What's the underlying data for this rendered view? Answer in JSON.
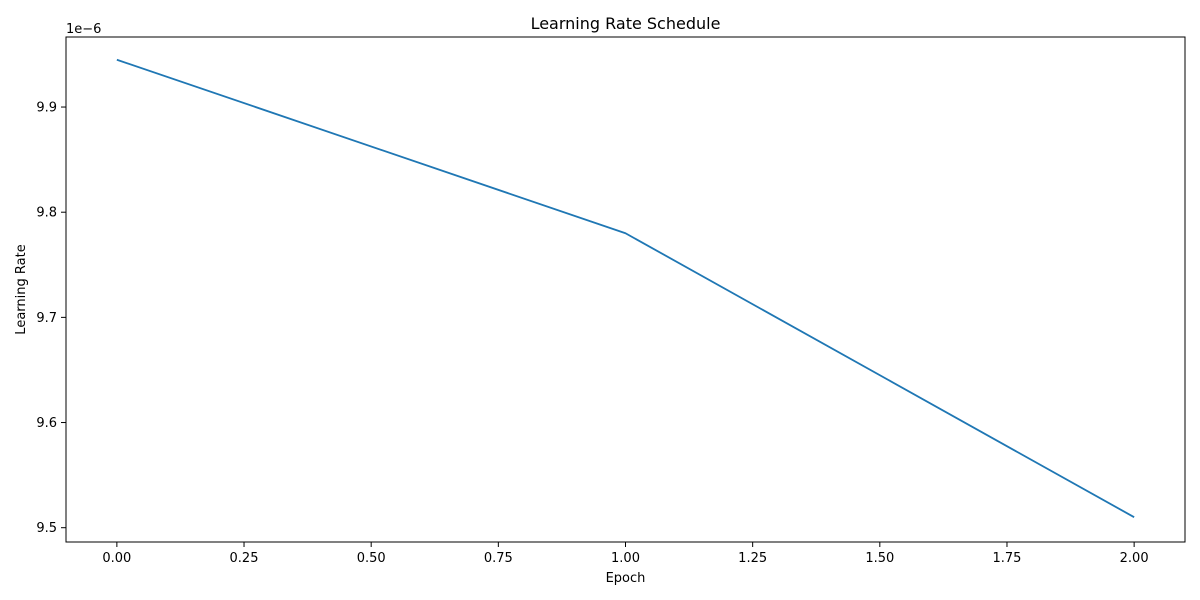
{
  "chart_data": {
    "type": "line",
    "title": "Learning Rate Schedule",
    "xlabel": "Epoch",
    "ylabel": "Learning Rate",
    "offset_text": "1e−6",
    "xlim": [
      -0.1,
      2.1
    ],
    "ylim": [
      9.4864,
      9.9666
    ],
    "x_ticks": [
      0.0,
      0.25,
      0.5,
      0.75,
      1.0,
      1.25,
      1.5,
      1.75,
      2.0
    ],
    "x_tick_labels": [
      "0.00",
      "0.25",
      "0.50",
      "0.75",
      "1.00",
      "1.25",
      "1.50",
      "1.75",
      "2.00"
    ],
    "y_ticks": [
      9.5,
      9.6,
      9.7,
      9.8,
      9.9
    ],
    "y_tick_labels": [
      "9.5",
      "9.6",
      "9.7",
      "9.8",
      "9.9"
    ],
    "grid": false,
    "series": [
      {
        "color": "#1f77b4",
        "x": [
          0,
          1,
          2
        ],
        "y": [
          9.945,
          9.78,
          9.51
        ]
      }
    ]
  }
}
